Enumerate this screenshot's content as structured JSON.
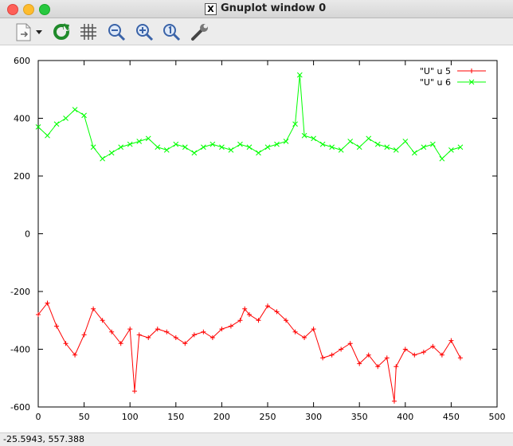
{
  "window": {
    "title": "Gnuplot window 0",
    "title_icon": "x11-icon"
  },
  "toolbar": {
    "buttons": [
      {
        "name": "export-menu-button",
        "icon": "export-icon"
      },
      {
        "name": "replot-button",
        "icon": "refresh-icon"
      },
      {
        "name": "grid-button",
        "icon": "grid-icon"
      },
      {
        "name": "zoom-out-button",
        "icon": "zoom-out-icon"
      },
      {
        "name": "zoom-in-button",
        "icon": "zoom-in-icon"
      },
      {
        "name": "zoom-reset-button",
        "icon": "zoom-1-icon"
      },
      {
        "name": "settings-button",
        "icon": "wrench-icon"
      }
    ]
  },
  "status": {
    "coords": "-25.5943,  557.388"
  },
  "colors": {
    "series1": "#ff0000",
    "series2": "#00ff00"
  },
  "chart_data": {
    "type": "line",
    "title": "",
    "xlabel": "",
    "ylabel": "",
    "xlim": [
      0,
      500
    ],
    "ylim": [
      -600,
      600
    ],
    "xticks": [
      0,
      50,
      100,
      150,
      200,
      250,
      300,
      350,
      400,
      450,
      500
    ],
    "yticks": [
      -600,
      -400,
      -200,
      0,
      200,
      400,
      600
    ],
    "grid": false,
    "legend_position": "top-right",
    "series": [
      {
        "name": "\"U\" u 5",
        "marker": "plus",
        "x": [
          0,
          10,
          20,
          30,
          40,
          50,
          60,
          70,
          80,
          90,
          100,
          105,
          110,
          120,
          130,
          140,
          150,
          160,
          170,
          180,
          190,
          200,
          210,
          220,
          225,
          230,
          240,
          250,
          260,
          270,
          280,
          290,
          300,
          310,
          320,
          330,
          340,
          350,
          360,
          370,
          380,
          388,
          390,
          400,
          410,
          420,
          430,
          440,
          450,
          460
        ],
        "y": [
          -280,
          -240,
          -320,
          -380,
          -420,
          -350,
          -260,
          -300,
          -340,
          -380,
          -330,
          -545,
          -350,
          -360,
          -330,
          -340,
          -360,
          -380,
          -350,
          -340,
          -360,
          -330,
          -320,
          -300,
          -260,
          -280,
          -300,
          -250,
          -270,
          -300,
          -340,
          -360,
          -330,
          -430,
          -420,
          -400,
          -380,
          -450,
          -420,
          -460,
          -430,
          -580,
          -460,
          -400,
          -420,
          -410,
          -390,
          -420,
          -370,
          -430
        ]
      },
      {
        "name": "\"U\" u 6",
        "marker": "x",
        "x": [
          0,
          10,
          20,
          30,
          40,
          50,
          60,
          70,
          80,
          90,
          100,
          110,
          120,
          130,
          140,
          150,
          160,
          170,
          180,
          190,
          200,
          210,
          220,
          230,
          240,
          250,
          260,
          270,
          280,
          285,
          290,
          300,
          310,
          320,
          330,
          340,
          350,
          360,
          370,
          380,
          390,
          400,
          410,
          420,
          430,
          440,
          450,
          460
        ],
        "y": [
          370,
          340,
          380,
          400,
          430,
          410,
          300,
          260,
          280,
          300,
          310,
          320,
          330,
          300,
          290,
          310,
          300,
          280,
          300,
          310,
          300,
          290,
          310,
          300,
          280,
          300,
          310,
          320,
          380,
          550,
          340,
          330,
          310,
          300,
          290,
          320,
          300,
          330,
          310,
          300,
          290,
          320,
          280,
          300,
          310,
          260,
          290,
          300
        ]
      }
    ]
  }
}
